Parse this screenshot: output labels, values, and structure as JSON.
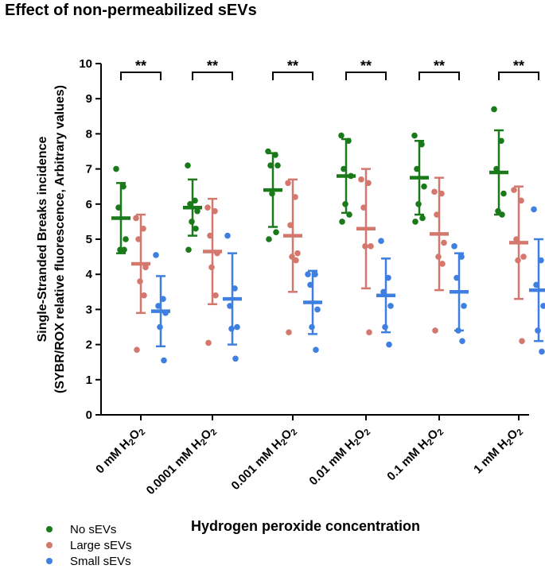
{
  "chart_data": {
    "type": "scatter",
    "title": "Effect of non-permeabilized sEVs",
    "xlabel": "Hydrogen peroxide concentration",
    "ylabel_line1": "Single-Stranded Breaks incidence",
    "ylabel_line2": "(SYBR/ROX relative fluorescence, Arbitrary values)",
    "ylim": [
      0,
      10
    ],
    "yticks": [
      "0",
      "1",
      "2",
      "3",
      "4",
      "5",
      "6",
      "7",
      "8",
      "9",
      "10"
    ],
    "categories": [
      {
        "pre": "0 mM H",
        "sub1": "2",
        "mid": "O",
        "sub2": "2"
      },
      {
        "pre": "0.0001 mM H",
        "sub1": "2",
        "mid": "O",
        "sub2": "2"
      },
      {
        "pre": "0.001 mM H",
        "sub1": "2",
        "mid": "O",
        "sub2": "2"
      },
      {
        "pre": "0.01 mM H",
        "sub1": "2",
        "mid": "O",
        "sub2": "2"
      },
      {
        "pre": "0.1 mM H",
        "sub1": "2",
        "mid": "O",
        "sub2": "2"
      },
      {
        "pre": "1 mM H",
        "sub1": "2",
        "mid": "O",
        "sub2": "2"
      }
    ],
    "significance": [
      "**",
      "**",
      "**",
      "**",
      "**",
      "**"
    ],
    "series": [
      {
        "name": "No sEVs",
        "color": "#1a7a1a",
        "points": [
          [
            7.0,
            6.5,
            5.9,
            5.0,
            4.7,
            4.7
          ],
          [
            7.1,
            6.1,
            6.0,
            5.8,
            5.5,
            5.3,
            4.7
          ],
          [
            7.5,
            7.4,
            7.1,
            7.1,
            6.3,
            5.2,
            5.0
          ],
          [
            7.95,
            7.8,
            7.0,
            6.8,
            6.0,
            5.7,
            5.5
          ],
          [
            7.95,
            7.7,
            7.0,
            6.5,
            6.0,
            5.6,
            5.5
          ],
          [
            8.7,
            7.8,
            7.0,
            6.3,
            5.8,
            5.7
          ]
        ],
        "mean": [
          5.6,
          5.9,
          6.4,
          6.8,
          6.75,
          6.9
        ],
        "sd": [
          1.0,
          0.8,
          1.05,
          1.05,
          1.05,
          1.2
        ]
      },
      {
        "name": "Large sEVs",
        "color": "#d4786e",
        "points": [
          [
            5.6,
            5.3,
            5.0,
            4.2,
            3.8,
            3.4,
            1.85
          ],
          [
            5.9,
            5.8,
            5.1,
            4.6,
            4.2,
            3.4,
            2.05
          ],
          [
            6.6,
            6.2,
            5.4,
            4.6,
            4.5,
            4.4,
            2.35
          ],
          [
            6.7,
            6.6,
            5.9,
            4.8,
            4.8,
            2.35
          ],
          [
            6.35,
            6.3,
            5.7,
            4.9,
            4.5,
            4.3,
            2.4
          ],
          [
            6.4,
            6.1,
            5.0,
            4.5,
            4.4,
            2.1
          ]
        ],
        "mean": [
          4.3,
          4.65,
          5.1,
          5.3,
          5.15,
          4.9
        ],
        "sd": [
          1.4,
          1.5,
          1.6,
          1.7,
          1.6,
          1.6
        ]
      },
      {
        "name": "Small sEVs",
        "color": "#3f7fe0",
        "points": [
          [
            4.55,
            3.3,
            3.1,
            2.9,
            2.5,
            1.55
          ],
          [
            5.1,
            3.6,
            3.1,
            2.5,
            2.45,
            1.6
          ],
          [
            4.0,
            4.0,
            3.7,
            3.0,
            2.5,
            1.85
          ],
          [
            4.95,
            3.9,
            3.5,
            3.1,
            2.5,
            2.0
          ],
          [
            4.8,
            4.5,
            3.9,
            3.1,
            2.4,
            2.1
          ],
          [
            5.85,
            4.4,
            3.7,
            3.1,
            2.4,
            1.8
          ]
        ],
        "mean": [
          2.95,
          3.3,
          3.2,
          3.4,
          3.5,
          3.55
        ],
        "sd": [
          1.0,
          1.3,
          0.9,
          1.05,
          1.1,
          1.45
        ]
      }
    ]
  }
}
